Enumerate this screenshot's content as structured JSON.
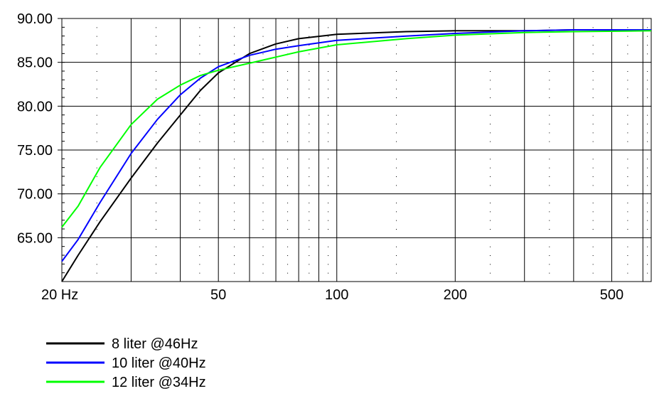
{
  "chart_data": {
    "type": "line",
    "title": "",
    "xlabel": "",
    "ylabel": "",
    "xscale": "log",
    "xlim": [
      20,
      630
    ],
    "ylim": [
      60.0,
      90.0
    ],
    "grid": true,
    "legend_position": "bottom-left",
    "x_ticks": [
      {
        "value": 20,
        "label": "20 Hz"
      },
      {
        "value": 50,
        "label": "50"
      },
      {
        "value": 100,
        "label": "100"
      },
      {
        "value": 200,
        "label": "200"
      },
      {
        "value": 500,
        "label": "500"
      }
    ],
    "y_ticks": [
      {
        "value": 90,
        "label": "90.00"
      },
      {
        "value": 85,
        "label": "85.00"
      },
      {
        "value": 80,
        "label": "80.00"
      },
      {
        "value": 75,
        "label": "75.00"
      },
      {
        "value": 70,
        "label": "70.00"
      },
      {
        "value": 65,
        "label": "65.00"
      }
    ],
    "series": [
      {
        "name": "8 liter @46Hz",
        "color": "#000000",
        "points": [
          [
            20,
            60.0
          ],
          [
            22,
            63.0
          ],
          [
            25,
            66.8
          ],
          [
            30,
            71.8
          ],
          [
            35,
            75.8
          ],
          [
            40,
            79.0
          ],
          [
            45,
            81.8
          ],
          [
            50,
            83.8
          ],
          [
            60,
            86.0
          ],
          [
            70,
            87.1
          ],
          [
            80,
            87.7
          ],
          [
            100,
            88.2
          ],
          [
            150,
            88.5
          ],
          [
            200,
            88.6
          ],
          [
            300,
            88.6
          ],
          [
            400,
            88.7
          ],
          [
            630,
            88.7
          ]
        ]
      },
      {
        "name": "10 liter @40Hz",
        "color": "#0000ff",
        "points": [
          [
            20,
            62.3
          ],
          [
            22,
            64.8
          ],
          [
            25,
            69.0
          ],
          [
            30,
            74.6
          ],
          [
            35,
            78.5
          ],
          [
            40,
            81.3
          ],
          [
            45,
            83.2
          ],
          [
            50,
            84.5
          ],
          [
            60,
            85.8
          ],
          [
            70,
            86.5
          ],
          [
            80,
            86.9
          ],
          [
            100,
            87.5
          ],
          [
            150,
            88.0
          ],
          [
            200,
            88.3
          ],
          [
            300,
            88.6
          ],
          [
            400,
            88.7
          ],
          [
            630,
            88.7
          ]
        ]
      },
      {
        "name": "12 liter @34Hz",
        "color": "#00ff00",
        "points": [
          [
            20,
            66.2
          ],
          [
            22,
            68.6
          ],
          [
            25,
            73.0
          ],
          [
            30,
            77.9
          ],
          [
            35,
            80.8
          ],
          [
            40,
            82.4
          ],
          [
            45,
            83.5
          ],
          [
            50,
            84.1
          ],
          [
            60,
            84.9
          ],
          [
            70,
            85.6
          ],
          [
            80,
            86.2
          ],
          [
            100,
            87.0
          ],
          [
            150,
            87.7
          ],
          [
            200,
            88.1
          ],
          [
            300,
            88.4
          ],
          [
            400,
            88.5
          ],
          [
            630,
            88.6
          ]
        ]
      }
    ]
  }
}
